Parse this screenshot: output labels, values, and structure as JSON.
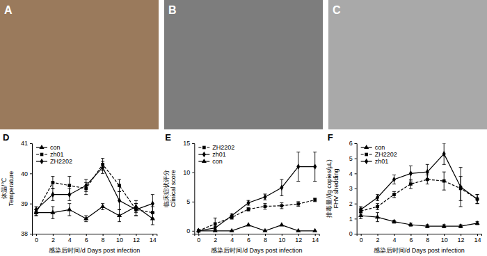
{
  "photos": [
    {
      "label": "A"
    },
    {
      "label": "B"
    },
    {
      "label": "C"
    }
  ],
  "chart_data": [
    {
      "type": "line",
      "title": "D",
      "x_label": "感染后时间/d Days post infection",
      "y_label": [
        "体温/℃",
        "Temperature"
      ],
      "x": [
        0,
        2,
        4,
        6,
        8,
        10,
        12,
        14
      ],
      "xlim": [
        -0.5,
        14.5
      ],
      "xticks": [
        0,
        2,
        4,
        6,
        8,
        10,
        12,
        14
      ],
      "ylim": [
        38,
        41
      ],
      "yticks": [
        38,
        39,
        40,
        41
      ],
      "grid": false,
      "legend": "top-left",
      "series": [
        {
          "name": "con",
          "color": "#000000",
          "marker": "triangle",
          "line_style": "solid",
          "values": [
            38.7,
            38.7,
            38.8,
            38.5,
            38.9,
            38.6,
            38.9,
            38.5
          ],
          "errors": [
            0.1,
            0.2,
            0.2,
            0.1,
            0.1,
            0.2,
            0.2,
            0.2
          ]
        },
        {
          "name": "zh01",
          "color": "#000000",
          "marker": "square",
          "line_style": "dashed",
          "values": [
            38.7,
            39.7,
            39.6,
            39.5,
            40.3,
            39.6,
            38.8,
            38.7
          ],
          "errors": [
            0.1,
            0.2,
            0.3,
            0.2,
            0.2,
            0.2,
            0.2,
            0.2
          ]
        },
        {
          "name": "ZH2202",
          "color": "#000000",
          "marker": "diamond",
          "line_style": "solid",
          "values": [
            38.8,
            39.3,
            39.3,
            39.6,
            40.2,
            39.1,
            38.8,
            39.0
          ],
          "errors": [
            0.1,
            0.2,
            0.2,
            0.2,
            0.2,
            0.3,
            0.2,
            0.3
          ]
        }
      ]
    },
    {
      "type": "line",
      "title": "E",
      "x_label": "感染后时间/d Days post infection",
      "y_label": [
        "临床症状评分",
        "Clinical score"
      ],
      "x": [
        0,
        2,
        4,
        6,
        8,
        10,
        12,
        14
      ],
      "xlim": [
        -0.5,
        14.5
      ],
      "xticks": [
        0,
        2,
        4,
        6,
        8,
        10,
        12,
        14
      ],
      "ylim": [
        -0.5,
        15
      ],
      "yticks": [
        0,
        5,
        10,
        15
      ],
      "grid": false,
      "legend": "top-left",
      "series": [
        {
          "name": "ZH2202",
          "color": "#000000",
          "marker": "square",
          "line_style": "dashed",
          "values": [
            0,
            1.2,
            2.3,
            3.7,
            4.2,
            4.3,
            4.6,
            5.3
          ],
          "errors": [
            0,
            1.0,
            0.3,
            0.3,
            0.5,
            0.5,
            0.4,
            0.3
          ]
        },
        {
          "name": "zh01",
          "color": "#000000",
          "marker": "diamond",
          "line_style": "solid",
          "values": [
            0,
            0.5,
            2.6,
            4.8,
            5.8,
            7.4,
            11,
            11
          ],
          "errors": [
            0,
            0.3,
            0.3,
            0.4,
            0.5,
            1.4,
            2.5,
            2.5
          ]
        },
        {
          "name": "con",
          "color": "#000000",
          "marker": "triangle",
          "line_style": "solid",
          "values": [
            0,
            0,
            0,
            1,
            0,
            1,
            0,
            0
          ],
          "errors": [
            0,
            0,
            0,
            0,
            0,
            0,
            0,
            0
          ]
        }
      ]
    },
    {
      "type": "line",
      "title": "F",
      "x_label": "感染后时间/d Days post infection",
      "y_label": [
        "排毒量/(lg copies/μL)",
        "FHV shedding"
      ],
      "x": [
        0,
        2,
        4,
        6,
        8,
        10,
        12,
        14
      ],
      "xlim": [
        -0.5,
        14.5
      ],
      "xticks": [
        0,
        2,
        4,
        6,
        8,
        10,
        12,
        14
      ],
      "ylim": [
        0,
        6
      ],
      "yticks": [
        0,
        1,
        2,
        3,
        4,
        5,
        6
      ],
      "grid": false,
      "legend": "top-left",
      "series": [
        {
          "name": "con",
          "color": "#000000",
          "marker": "triangle",
          "line_style": "solid",
          "values": [
            1.2,
            1.1,
            0.8,
            0.6,
            0.5,
            0.5,
            0.5,
            0.7
          ],
          "errors": [
            0.2,
            0.3,
            0.1,
            0.1,
            0.1,
            0.1,
            0.1,
            0.1
          ]
        },
        {
          "name": "ZH2202",
          "color": "#000000",
          "marker": "square",
          "line_style": "dashed",
          "values": [
            1.5,
            1.8,
            2.6,
            3.3,
            3.6,
            3.5,
            3.0,
            2.3
          ],
          "errors": [
            0.2,
            0.2,
            0.2,
            0.3,
            0.3,
            0.6,
            0.8,
            0.3
          ]
        },
        {
          "name": "zh01",
          "color": "#000000",
          "marker": "diamond",
          "line_style": "solid",
          "values": [
            1.6,
            2.4,
            3.6,
            4.0,
            4.1,
            5.3,
            3.1,
            2.3
          ],
          "errors": [
            0.2,
            0.2,
            0.3,
            0.5,
            0.5,
            0.7,
            1.3,
            0.3
          ]
        }
      ]
    }
  ]
}
